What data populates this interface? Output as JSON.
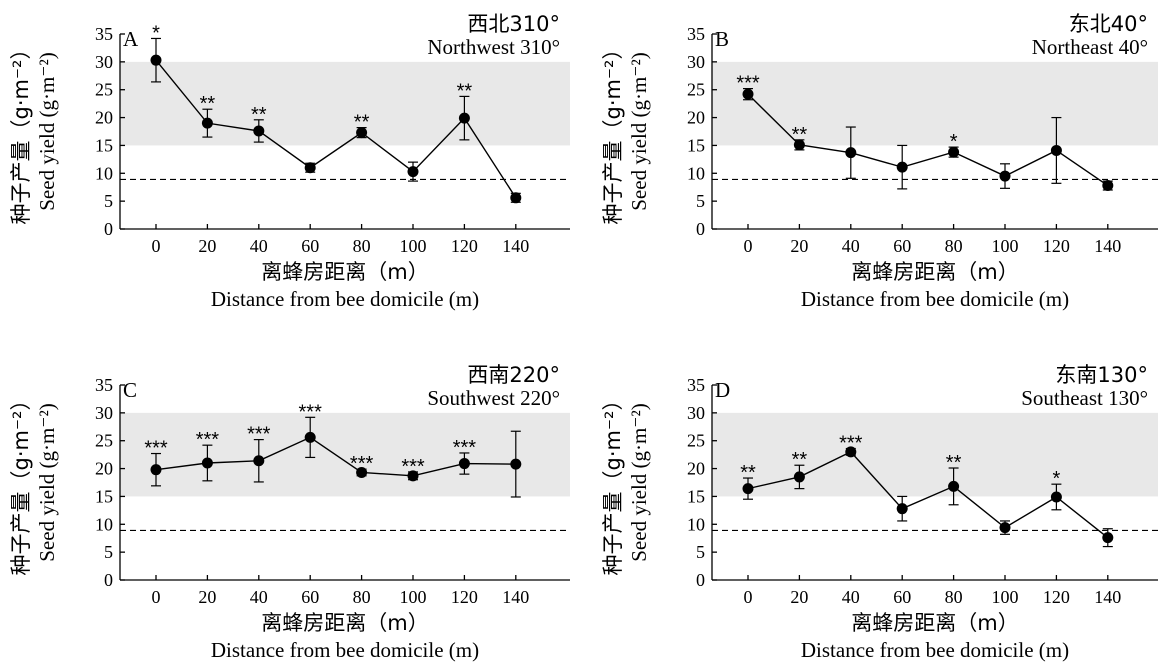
{
  "chart_data": [
    {
      "type": "line",
      "panel_label": "A",
      "direction_cn": "西北310°",
      "direction_en": "Northwest 310°",
      "x": [
        0,
        20,
        40,
        60,
        80,
        100,
        120,
        140
      ],
      "values": [
        30.3,
        19.0,
        17.6,
        11.0,
        17.3,
        10.3,
        19.9,
        5.6
      ],
      "errors": [
        3.9,
        2.5,
        2.0,
        0.8,
        0.9,
        1.7,
        3.9,
        0.8
      ],
      "significance": [
        "*",
        "**",
        "**",
        "",
        "**",
        "",
        "**",
        ""
      ],
      "ylabel_cn": "种子产量（g·m⁻²）",
      "ylabel_en": "Seed yield (g·m⁻²)",
      "xlabel_cn": "离蜂房距离（m）",
      "xlabel_en": "Distance from bee domicile (m)",
      "ylim": [
        0,
        35
      ],
      "yticks": [
        0,
        5,
        10,
        15,
        20,
        25,
        30,
        35
      ],
      "shaded_band": [
        15,
        30
      ],
      "reference_line": 8.9
    },
    {
      "type": "line",
      "panel_label": "B",
      "direction_cn": "东北40°",
      "direction_en": "Northeast 40°",
      "x": [
        0,
        20,
        40,
        60,
        80,
        100,
        120,
        140
      ],
      "values": [
        24.2,
        15.1,
        13.7,
        11.1,
        13.8,
        9.5,
        14.1,
        7.8
      ],
      "errors": [
        1.0,
        0.9,
        4.6,
        3.9,
        0.9,
        2.2,
        5.9,
        0.8
      ],
      "significance": [
        "***",
        "**",
        "",
        "",
        "*",
        "",
        "",
        ""
      ],
      "ylabel_cn": "种子产量（g·m⁻²）",
      "ylabel_en": "Seed yield (g·m⁻²)",
      "xlabel_cn": "离蜂房距离（m）",
      "xlabel_en": "Distance from bee domicile (m)",
      "ylim": [
        0,
        35
      ],
      "yticks": [
        0,
        5,
        10,
        15,
        20,
        25,
        30,
        35
      ],
      "shaded_band": [
        15,
        30
      ],
      "reference_line": 8.9
    },
    {
      "type": "line",
      "panel_label": "C",
      "direction_cn": "西南220°",
      "direction_en": "Southwest 220°",
      "x": [
        0,
        20,
        40,
        60,
        80,
        100,
        120,
        140
      ],
      "values": [
        19.8,
        21.0,
        21.4,
        25.6,
        19.3,
        18.7,
        20.9,
        20.8
      ],
      "errors": [
        2.9,
        3.2,
        3.8,
        3.6,
        0.6,
        0.7,
        1.9,
        5.9
      ],
      "significance": [
        "***",
        "***",
        "***",
        "***",
        "***",
        "***",
        "***",
        ""
      ],
      "ylabel_cn": "种子产量（g·m⁻²）",
      "ylabel_en": "Seed yield (g·m⁻²)",
      "xlabel_cn": "离蜂房距离（m）",
      "xlabel_en": "Distance from bee domicile (m)",
      "ylim": [
        0,
        35
      ],
      "yticks": [
        0,
        5,
        10,
        15,
        20,
        25,
        30,
        35
      ],
      "shaded_band": [
        15,
        30
      ],
      "reference_line": 8.9
    },
    {
      "type": "line",
      "panel_label": "D",
      "direction_cn": "东南130°",
      "direction_en": "Southeast 130°",
      "x": [
        0,
        20,
        40,
        60,
        80,
        100,
        120,
        140
      ],
      "values": [
        16.4,
        18.5,
        23.0,
        12.8,
        16.8,
        9.4,
        14.9,
        7.6
      ],
      "errors": [
        1.9,
        2.1,
        0.6,
        2.2,
        3.3,
        1.2,
        2.3,
        1.6
      ],
      "significance": [
        "**",
        "**",
        "***",
        "",
        "**",
        "",
        "*",
        ""
      ],
      "ylabel_cn": "种子产量（g·m⁻²）",
      "ylabel_en": "Seed yield (g·m⁻²)",
      "xlabel_cn": "离蜂房距离（m）",
      "xlabel_en": "Distance from bee domicile (m)",
      "ylim": [
        0,
        35
      ],
      "yticks": [
        0,
        5,
        10,
        15,
        20,
        25,
        30,
        35
      ],
      "shaded_band": [
        15,
        30
      ],
      "reference_line": 8.9
    }
  ],
  "colors": {
    "band": "#e8e8e8",
    "line": "#000000",
    "marker": "#000000"
  }
}
